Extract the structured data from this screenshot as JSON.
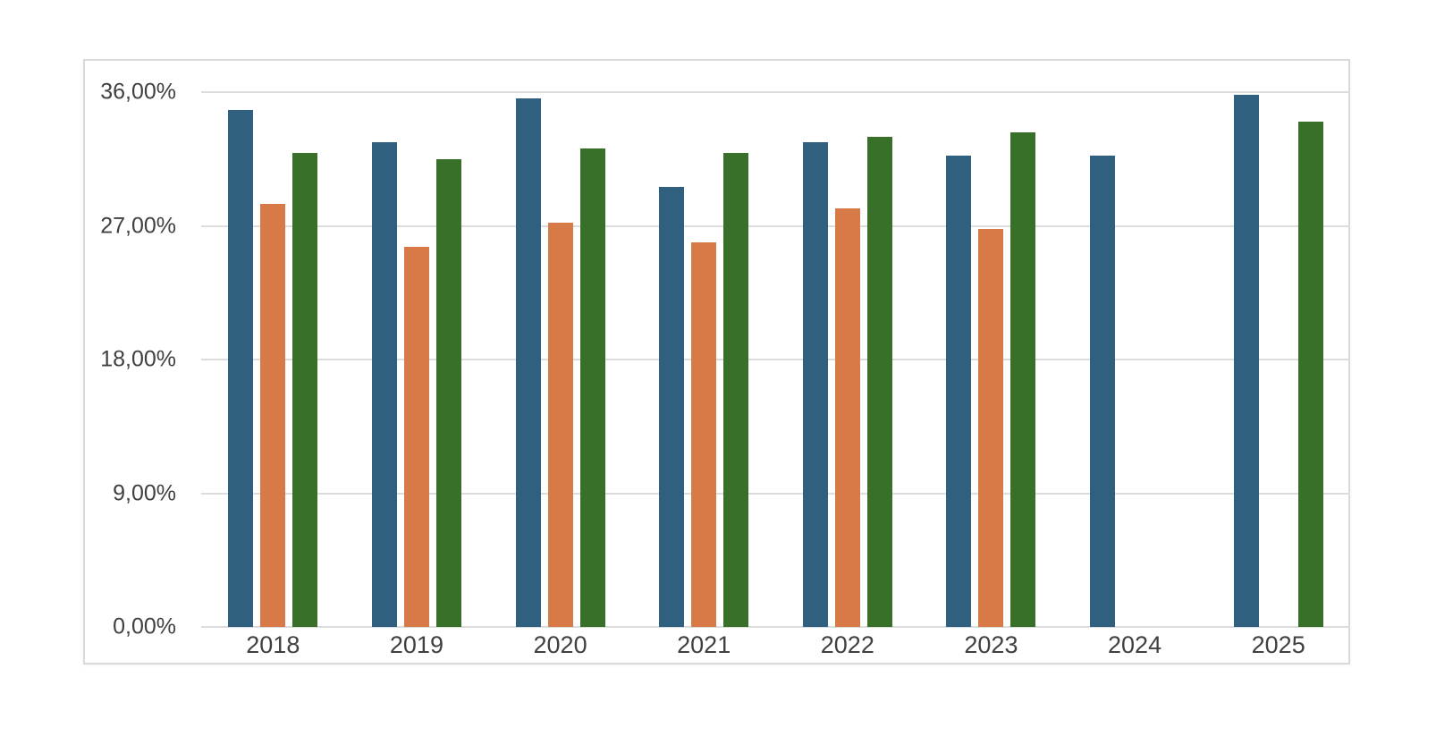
{
  "chart_data": {
    "type": "bar",
    "title": "",
    "xlabel": "",
    "ylabel": "",
    "categories": [
      "2018",
      "2019",
      "2020",
      "2021",
      "2022",
      "2023",
      "2024",
      "2025"
    ],
    "series": [
      {
        "name": "blue-series",
        "color": "#2f6080",
        "values": [
          34.8,
          32.6,
          35.6,
          29.6,
          32.6,
          31.7,
          31.7,
          35.8
        ]
      },
      {
        "name": "orange-series",
        "color": "#d87a47",
        "values": [
          28.5,
          25.6,
          27.2,
          25.9,
          28.2,
          26.8,
          null,
          null
        ]
      },
      {
        "name": "green-series",
        "color": "#38702a",
        "values": [
          31.9,
          31.5,
          32.2,
          31.9,
          33.0,
          33.3,
          null,
          34.0
        ]
      }
    ],
    "y_axis": {
      "tick_labels": [
        "0,00%",
        "9,00%",
        "18,00%",
        "27,00%",
        "36,00%"
      ],
      "tick_values": [
        0,
        9,
        18,
        27,
        36
      ],
      "ylim": [
        0,
        36
      ],
      "number_format": "comma-decimal-percent"
    },
    "grid": true,
    "legend": "none",
    "colors": {
      "gridline": "#dcdcdc",
      "frame_border": "#dadada",
      "axis_text": "#404040",
      "background": "#ffffff"
    }
  }
}
